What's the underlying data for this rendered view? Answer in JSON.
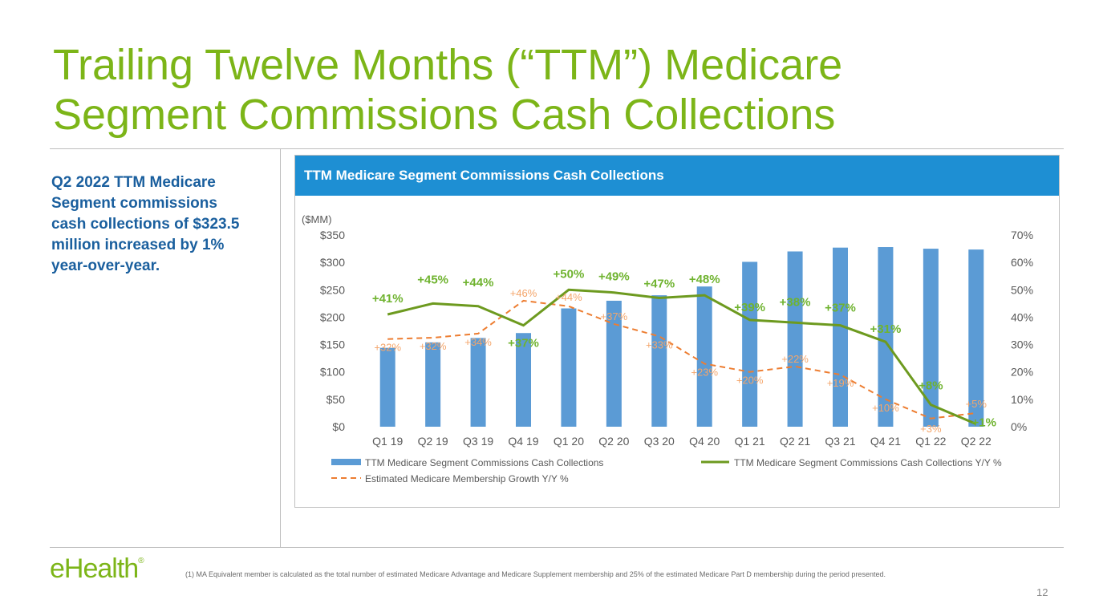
{
  "slide": {
    "title": "Trailing Twelve Months (“TTM”) Medicare Segment Commissions Cash Collections",
    "summary": "Q2 2022 TTM Medicare Segment commissions cash collections of $323.5 million increased by 1% year-over-year.",
    "logo_text": "eHealth",
    "logo_mark": "®",
    "footnote": "(1)    MA Equivalent member is calculated as the total number of estimated Medicare Advantage and Medicare Supplement membership and 25% of the estimated Medicare Part D membership during the period presented.",
    "page_number": "12"
  },
  "colors": {
    "bar": "#5b9bd5",
    "yoy_line": "#6d9a1f",
    "yoy_label": "#6fb32f",
    "membership_line": "#ed7d31",
    "membership_label": "#f4a56a"
  },
  "chart_data": {
    "type": "bar",
    "title": "TTM Medicare Segment Commissions Cash Collections",
    "unit_label": "($MM)",
    "categories": [
      "Q1 19",
      "Q2 19",
      "Q3 19",
      "Q4 19",
      "Q1 20",
      "Q2 20",
      "Q3 20",
      "Q4 20",
      "Q1 21",
      "Q2 21",
      "Q3 21",
      "Q4 21",
      "Q1 22",
      "Q2 22"
    ],
    "ylim": [
      0,
      350
    ],
    "yticks": [
      "$0",
      "$50",
      "$100",
      "$150",
      "$200",
      "$250",
      "$300",
      "$350"
    ],
    "y2lim": [
      0,
      70
    ],
    "y2ticks": [
      "0%",
      "10%",
      "20%",
      "30%",
      "40%",
      "50%",
      "60%",
      "70%"
    ],
    "series": [
      {
        "name": "TTM Medicare Segment Commissions Cash Collections",
        "type": "bar",
        "axis": "left",
        "values": [
          144,
          154,
          162,
          171,
          216,
          230,
          240,
          256,
          301,
          320,
          327,
          328,
          325,
          323.5
        ]
      },
      {
        "name": "TTM Medicare Segment Commissions Cash Collections Y/Y %",
        "type": "line",
        "axis": "right",
        "values": [
          41,
          45,
          44,
          37,
          50,
          49,
          47,
          48,
          39,
          38,
          37,
          31,
          8,
          1
        ],
        "labels": [
          "+41%",
          "+45%",
          "+44%",
          "+37%",
          "+50%",
          "+49%",
          "+47%",
          "+48%",
          "+39%",
          "+38%",
          "+37%",
          "+31%",
          "+8%",
          "+1%"
        ]
      },
      {
        "name": "Estimated Medicare Membership Growth Y/Y %",
        "type": "line",
        "style": "dashed",
        "axis": "right",
        "values": [
          32,
          32.5,
          34,
          46,
          44,
          37.5,
          33,
          23,
          20,
          22,
          19,
          10,
          3,
          5
        ],
        "labels": [
          "+32%",
          "+32%",
          "+34%",
          "+46%",
          "+44%",
          "+37%",
          "+33%",
          "+23%",
          "+20%",
          "+22%",
          "+19%",
          "+10%",
          "+3%",
          "+5%"
        ]
      }
    ],
    "legend_position": "bottom"
  }
}
